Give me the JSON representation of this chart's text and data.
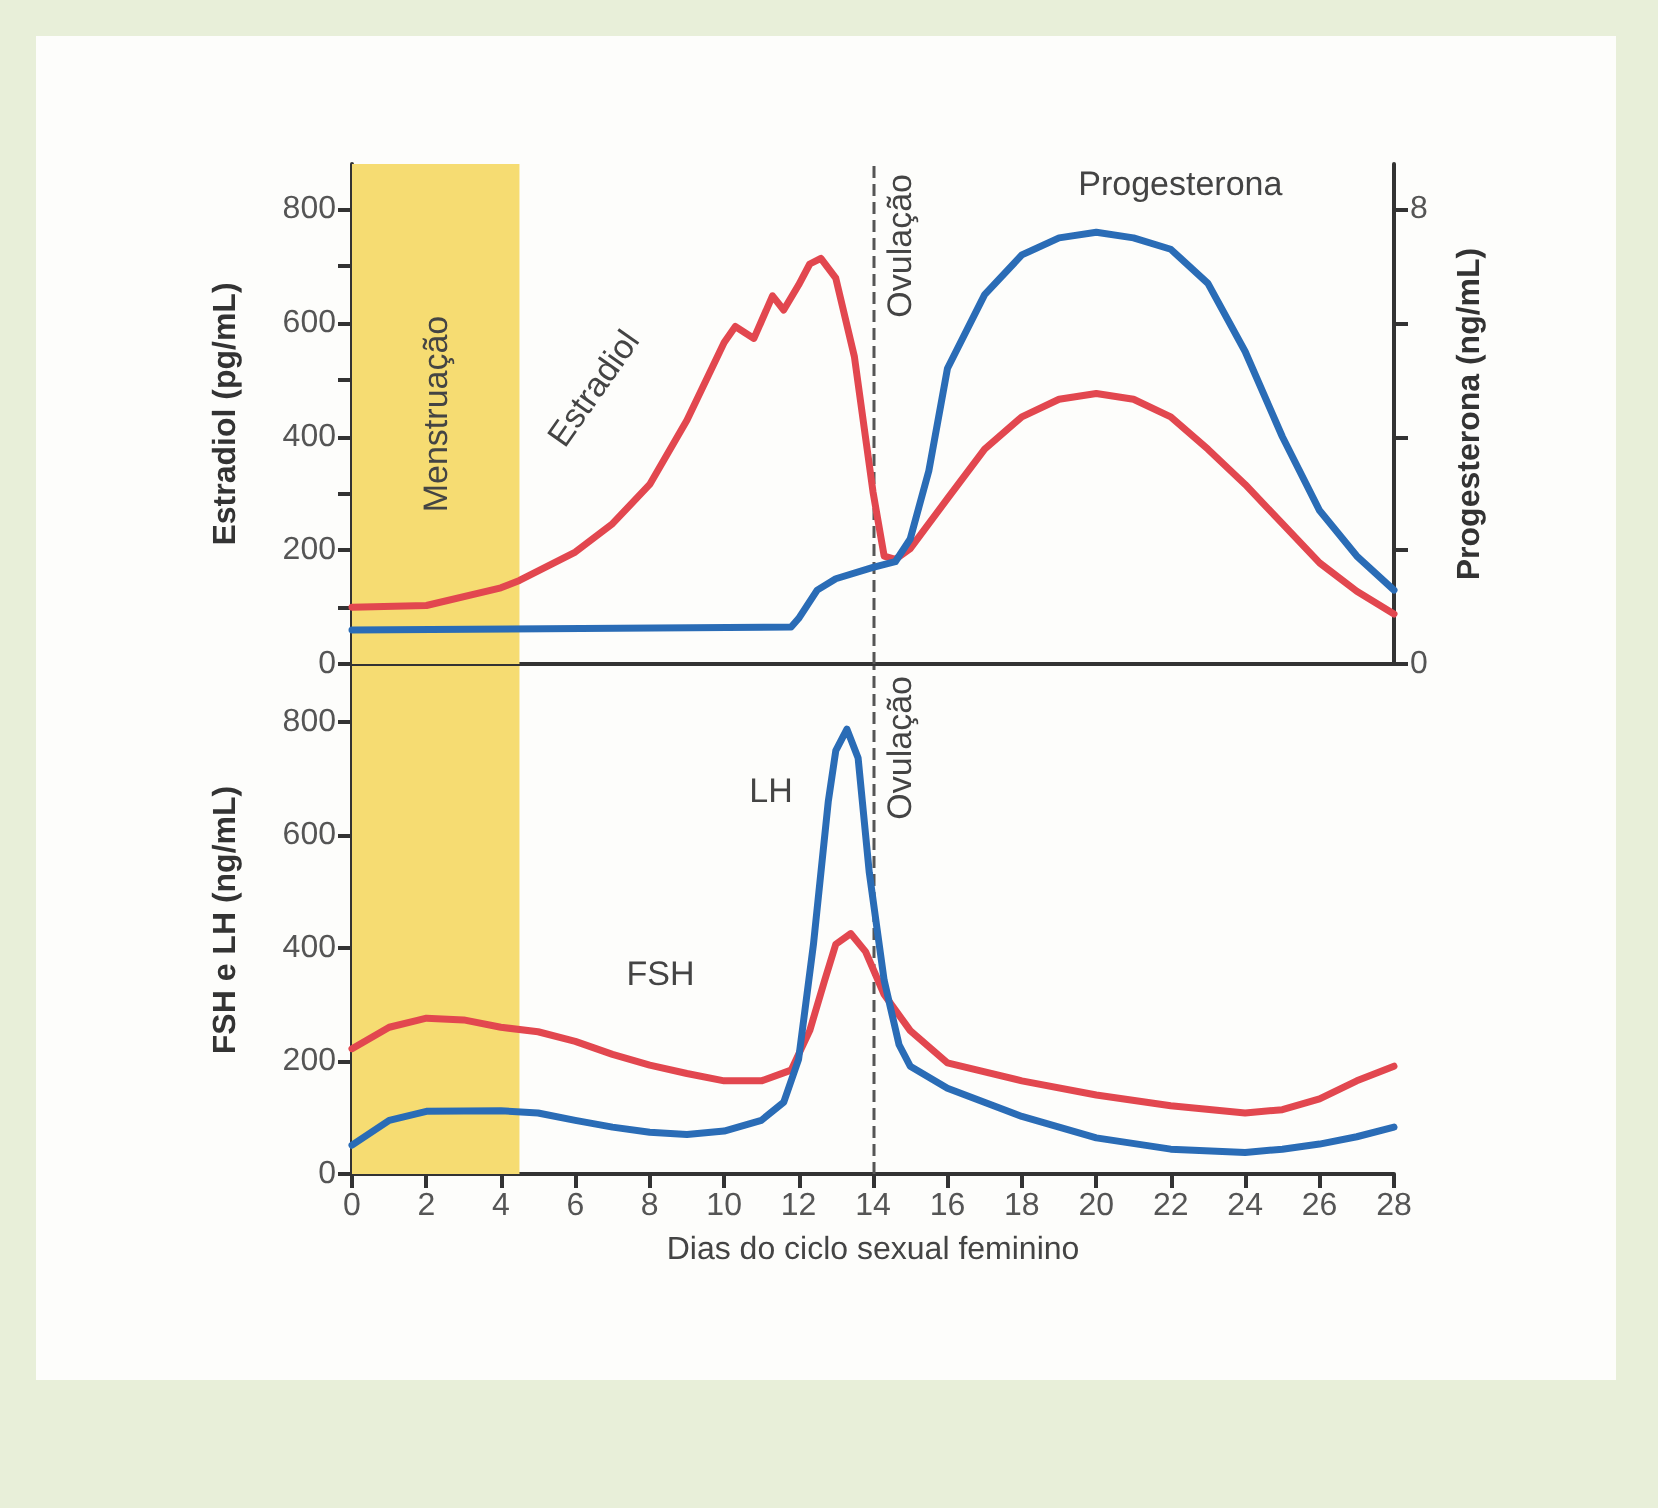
{
  "chart_data": [
    {
      "type": "line",
      "ylabel": "Estradiol (pg/mL)",
      "y2label": "Progesterona (ng/mL)",
      "xlim": [
        0,
        28
      ],
      "ylim": [
        0,
        880
      ],
      "y2lim": [
        0,
        8.8
      ],
      "yticks": [
        0,
        {
          "value": 100,
          "label": null
        },
        200,
        {
          "value": 300,
          "label": null
        },
        400,
        {
          "value": 500,
          "label": null
        },
        600,
        {
          "value": 700,
          "label": null
        },
        800
      ],
      "y2ticks": [
        0,
        {
          "value": 2,
          "label": null
        },
        {
          "value": 4,
          "label": null
        },
        {
          "value": 6,
          "label": null
        },
        8
      ],
      "tick_labels": "y",
      "grid": false,
      "marker": "none",
      "line_style": "solid",
      "bands": [
        {
          "axis": "x",
          "from": 0,
          "to": 4.5,
          "label": "Menstruação",
          "color": "#f6dc72"
        }
      ],
      "ref_lines": [
        {
          "axis": "x",
          "value": 14,
          "label": "Ovulação",
          "line_style": "dashed",
          "color": "#555555"
        }
      ],
      "series": [
        {
          "name": "Estradiol",
          "color": "#e2474f",
          "x": [
            0,
            2,
            4,
            4.5,
            6,
            7,
            8,
            9,
            10,
            10.3,
            10.8,
            11.3,
            11.6,
            12,
            12.3,
            12.6,
            13,
            13.5,
            14,
            14.3,
            14.6,
            15,
            16,
            17,
            18,
            19,
            20,
            21,
            22,
            23,
            24,
            25,
            26,
            27,
            28
          ],
          "values": [
            100,
            103,
            134,
            147,
            197,
            247,
            316,
            429,
            566,
            594,
            573,
            648,
            623,
            667,
            704,
            714,
            679,
            541,
            303,
            190,
            184,
            203,
            291,
            378,
            435,
            466,
            476,
            466,
            435,
            378,
            316,
            247,
            178,
            128,
            88
          ]
        },
        {
          "name": "Progesterona",
          "axis": "y2",
          "color": "#2a6cb6",
          "x": [
            0,
            11.8,
            12,
            12.5,
            13,
            14,
            14.6,
            15,
            15.5,
            16,
            17,
            18,
            19,
            20,
            21,
            22,
            23,
            24,
            25,
            26,
            27,
            28
          ],
          "values": [
            0.6,
            0.65,
            0.8,
            1.3,
            1.5,
            1.7,
            1.8,
            2.2,
            3.4,
            5.2,
            6.5,
            7.2,
            7.5,
            7.6,
            7.5,
            7.3,
            6.7,
            5.5,
            4,
            2.7,
            1.9,
            1.3
          ]
        }
      ]
    },
    {
      "type": "line",
      "ylabel": "FSH e LH (ng/mL)",
      "xlabel": "Dias do ciclo sexual feminino",
      "xlim": [
        0,
        28
      ],
      "ylim": [
        0,
        900
      ],
      "xticks": [
        0,
        2,
        4,
        6,
        8,
        10,
        12,
        14,
        16,
        18,
        20,
        22,
        24,
        26,
        28
      ],
      "yticks": [
        0,
        200,
        400,
        600,
        800
      ],
      "grid": false,
      "marker": "none",
      "line_style": "solid",
      "bands": [
        {
          "axis": "x",
          "from": 0,
          "to": 4.5,
          "color": "#f6dc72"
        }
      ],
      "ref_lines": [
        {
          "axis": "x",
          "value": 14,
          "label": "Ovulação",
          "line_style": "dashed",
          "color": "#555555"
        }
      ],
      "series": [
        {
          "name": "FSH",
          "color": "#e2474f",
          "x": [
            0,
            1,
            2,
            3,
            4,
            5,
            6,
            7,
            8,
            9,
            10,
            11,
            11.8,
            12.3,
            12.7,
            13,
            13.4,
            13.8,
            14.3,
            15,
            16,
            18,
            20,
            22,
            24,
            25,
            26,
            27,
            28
          ],
          "values": [
            222,
            260,
            276,
            273,
            260,
            252,
            235,
            212,
            193,
            178,
            165,
            165,
            184,
            254,
            343,
            407,
            426,
            394,
            318,
            254,
            197,
            165,
            140,
            121,
            108,
            114,
            133,
            165,
            191
          ]
        },
        {
          "name": "LH",
          "color": "#2a6cb6",
          "x": [
            0,
            1,
            2,
            4,
            5,
            6,
            7,
            8,
            9,
            10,
            11,
            11.6,
            12,
            12.4,
            12.8,
            13,
            13.3,
            13.6,
            13.9,
            14.3,
            14.7,
            15,
            16,
            18,
            20,
            22,
            24,
            25,
            26,
            27,
            28
          ],
          "values": [
            51,
            95,
            111,
            112,
            108,
            95,
            83,
            74,
            70,
            76,
            95,
            127,
            203,
            407,
            661,
            750,
            788,
            737,
            534,
            343,
            229,
            191,
            152,
            102,
            64,
            44,
            38,
            44,
            53,
            66,
            83
          ]
        }
      ]
    }
  ]
}
